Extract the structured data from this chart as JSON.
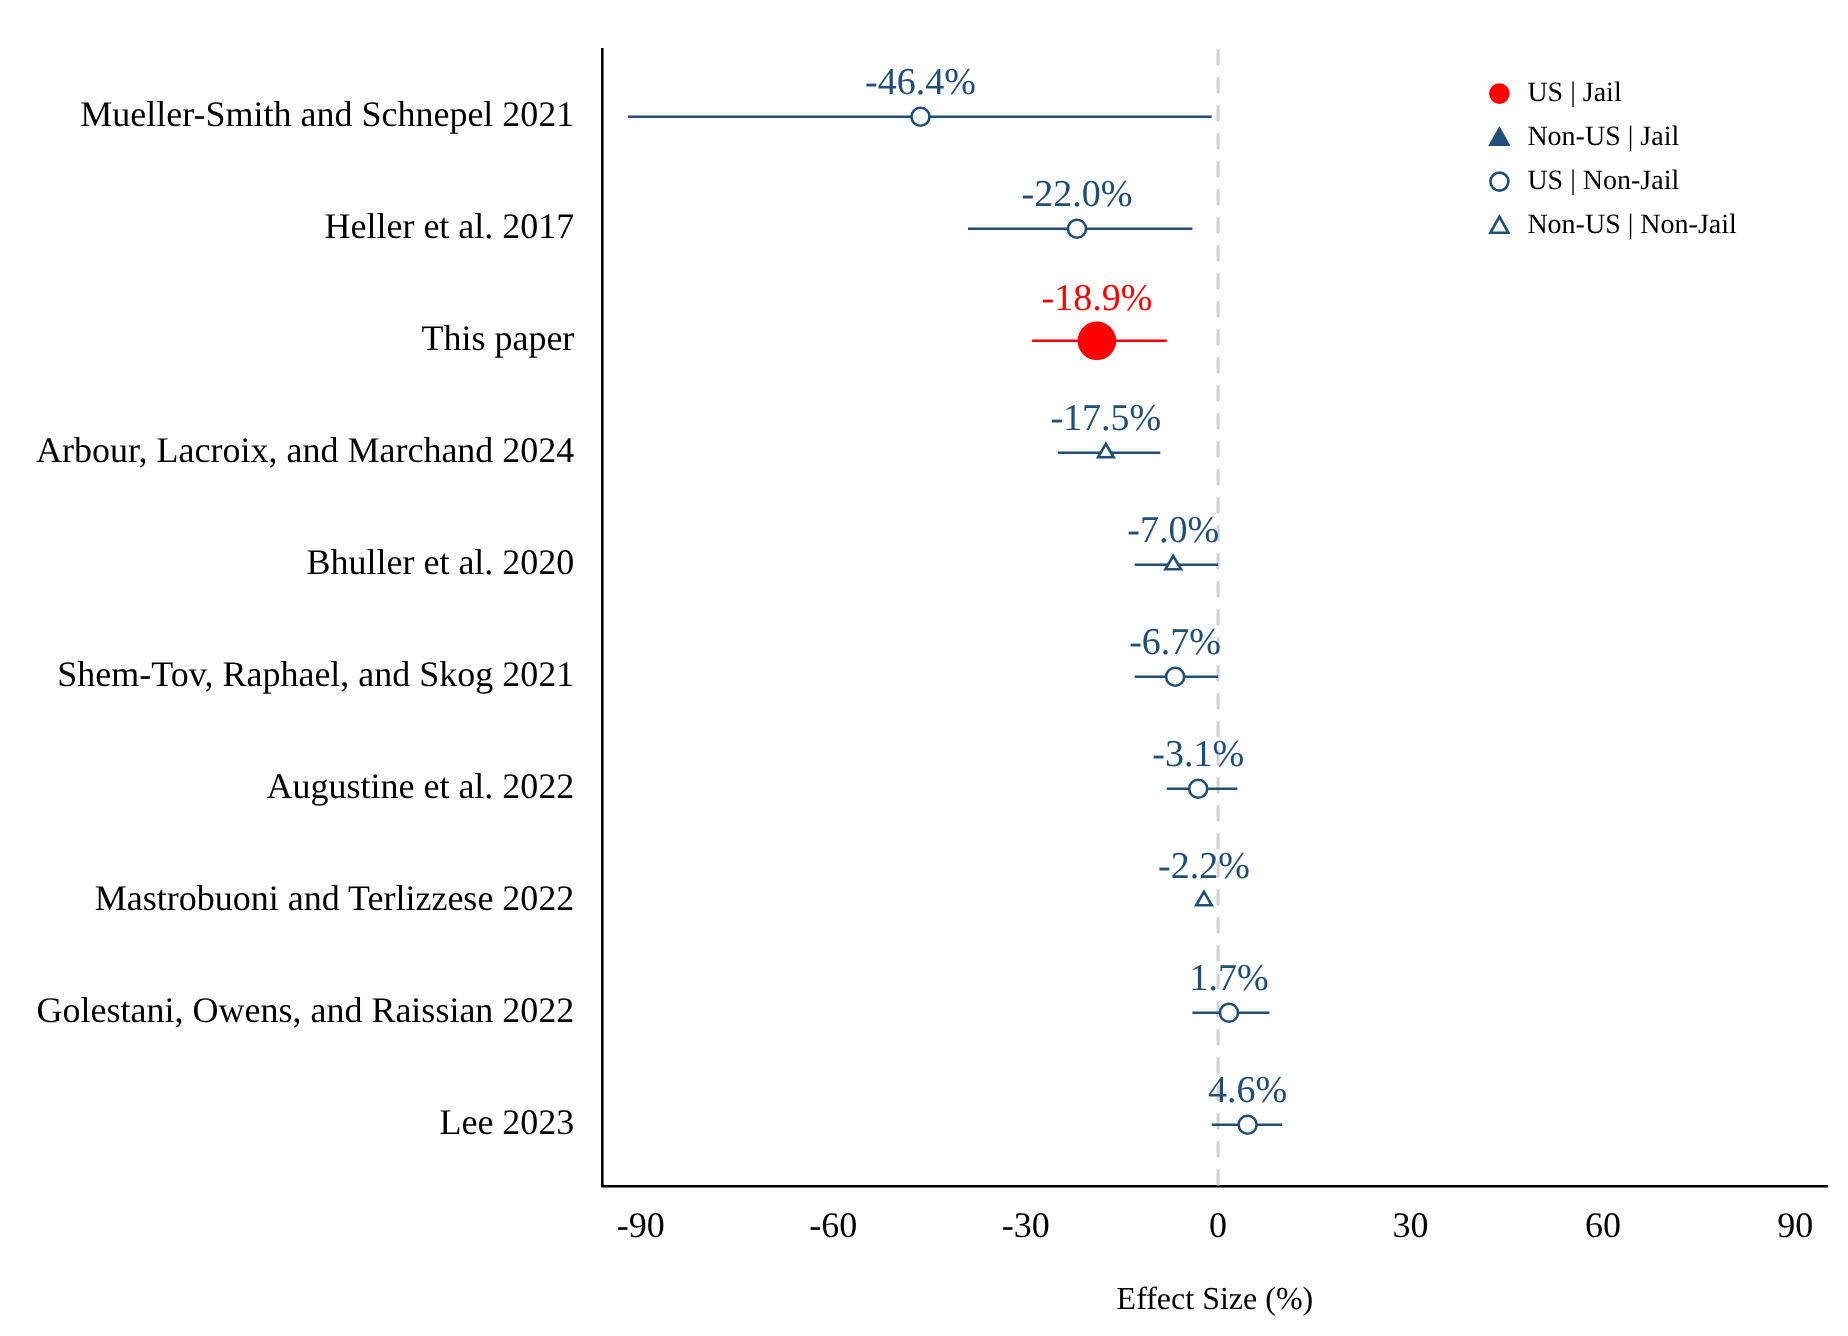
{
  "chart_data": {
    "type": "scatter",
    "orientation": "horizontal",
    "xlabel": "Effect Size (%)",
    "categories": [
      "Mueller-Smith and Schnepel 2021",
      "Heller et al. 2017",
      "This paper",
      "Arbour, Lacroix, and Marchand 2024",
      "Bhuller et al. 2020",
      "Shem-Tov, Raphael, and Skog 2021",
      "Augustine et al. 2022",
      "Mastrobuoni and Terlizzese 2022",
      "Golestani, Owens, and Raissian 2022",
      "Lee 2023"
    ],
    "series": [
      {
        "name": "US | Jail",
        "color": "#ff0000",
        "marker": "circle",
        "values": [
          null,
          null,
          -18.9,
          null,
          null,
          null,
          null,
          null,
          null,
          null
        ],
        "errors": [
          null,
          null,
          [
            -29,
            -8
          ],
          null,
          null,
          null,
          null,
          null,
          null,
          null
        ],
        "value_labels": [
          null,
          null,
          "-18.9%",
          null,
          null,
          null,
          null,
          null,
          null,
          null
        ]
      },
      {
        "name": "Non-US | Jail",
        "color": "#1f4e79",
        "marker": "triangle",
        "values": [
          null,
          null,
          null,
          null,
          null,
          null,
          null,
          null,
          null,
          null
        ]
      },
      {
        "name": "US | Non-Jail",
        "color": "#1f4e79",
        "marker": "circle",
        "values": [
          -46.4,
          -22.0,
          null,
          null,
          null,
          -6.7,
          -3.1,
          null,
          1.7,
          4.6
        ],
        "errors": [
          [
            -92,
            -1
          ],
          [
            -39,
            -4
          ],
          null,
          null,
          null,
          [
            -13,
            0
          ],
          [
            -8,
            3
          ],
          null,
          [
            -4,
            8
          ],
          [
            -1,
            10
          ]
        ],
        "value_labels": [
          "-46.4%",
          "-22.0%",
          null,
          null,
          null,
          "-6.7%",
          "-3.1%",
          null,
          "1.7%",
          "4.6%"
        ]
      },
      {
        "name": "Non-US | Non-Jail",
        "color": "#1f4e79",
        "marker": "triangle",
        "values": [
          null,
          null,
          null,
          -17.5,
          -7.0,
          null,
          null,
          -2.2,
          null,
          null
        ],
        "errors": [
          null,
          null,
          null,
          [
            -25,
            -9
          ],
          [
            -13,
            0
          ],
          null,
          null,
          null,
          null,
          null
        ],
        "value_labels": [
          null,
          null,
          null,
          "-17.5%",
          "-7.0%",
          null,
          null,
          "-2.2%",
          null,
          null
        ]
      }
    ],
    "xlim": [
      -96,
      95
    ],
    "xticks": [
      -90,
      -60,
      -30,
      0,
      30,
      60,
      90
    ],
    "ref_lines": [
      {
        "axis": "x",
        "value": 0,
        "color": "#d0d0d0",
        "line_style": "dashed"
      }
    ],
    "grid": false,
    "legend": "top right"
  }
}
